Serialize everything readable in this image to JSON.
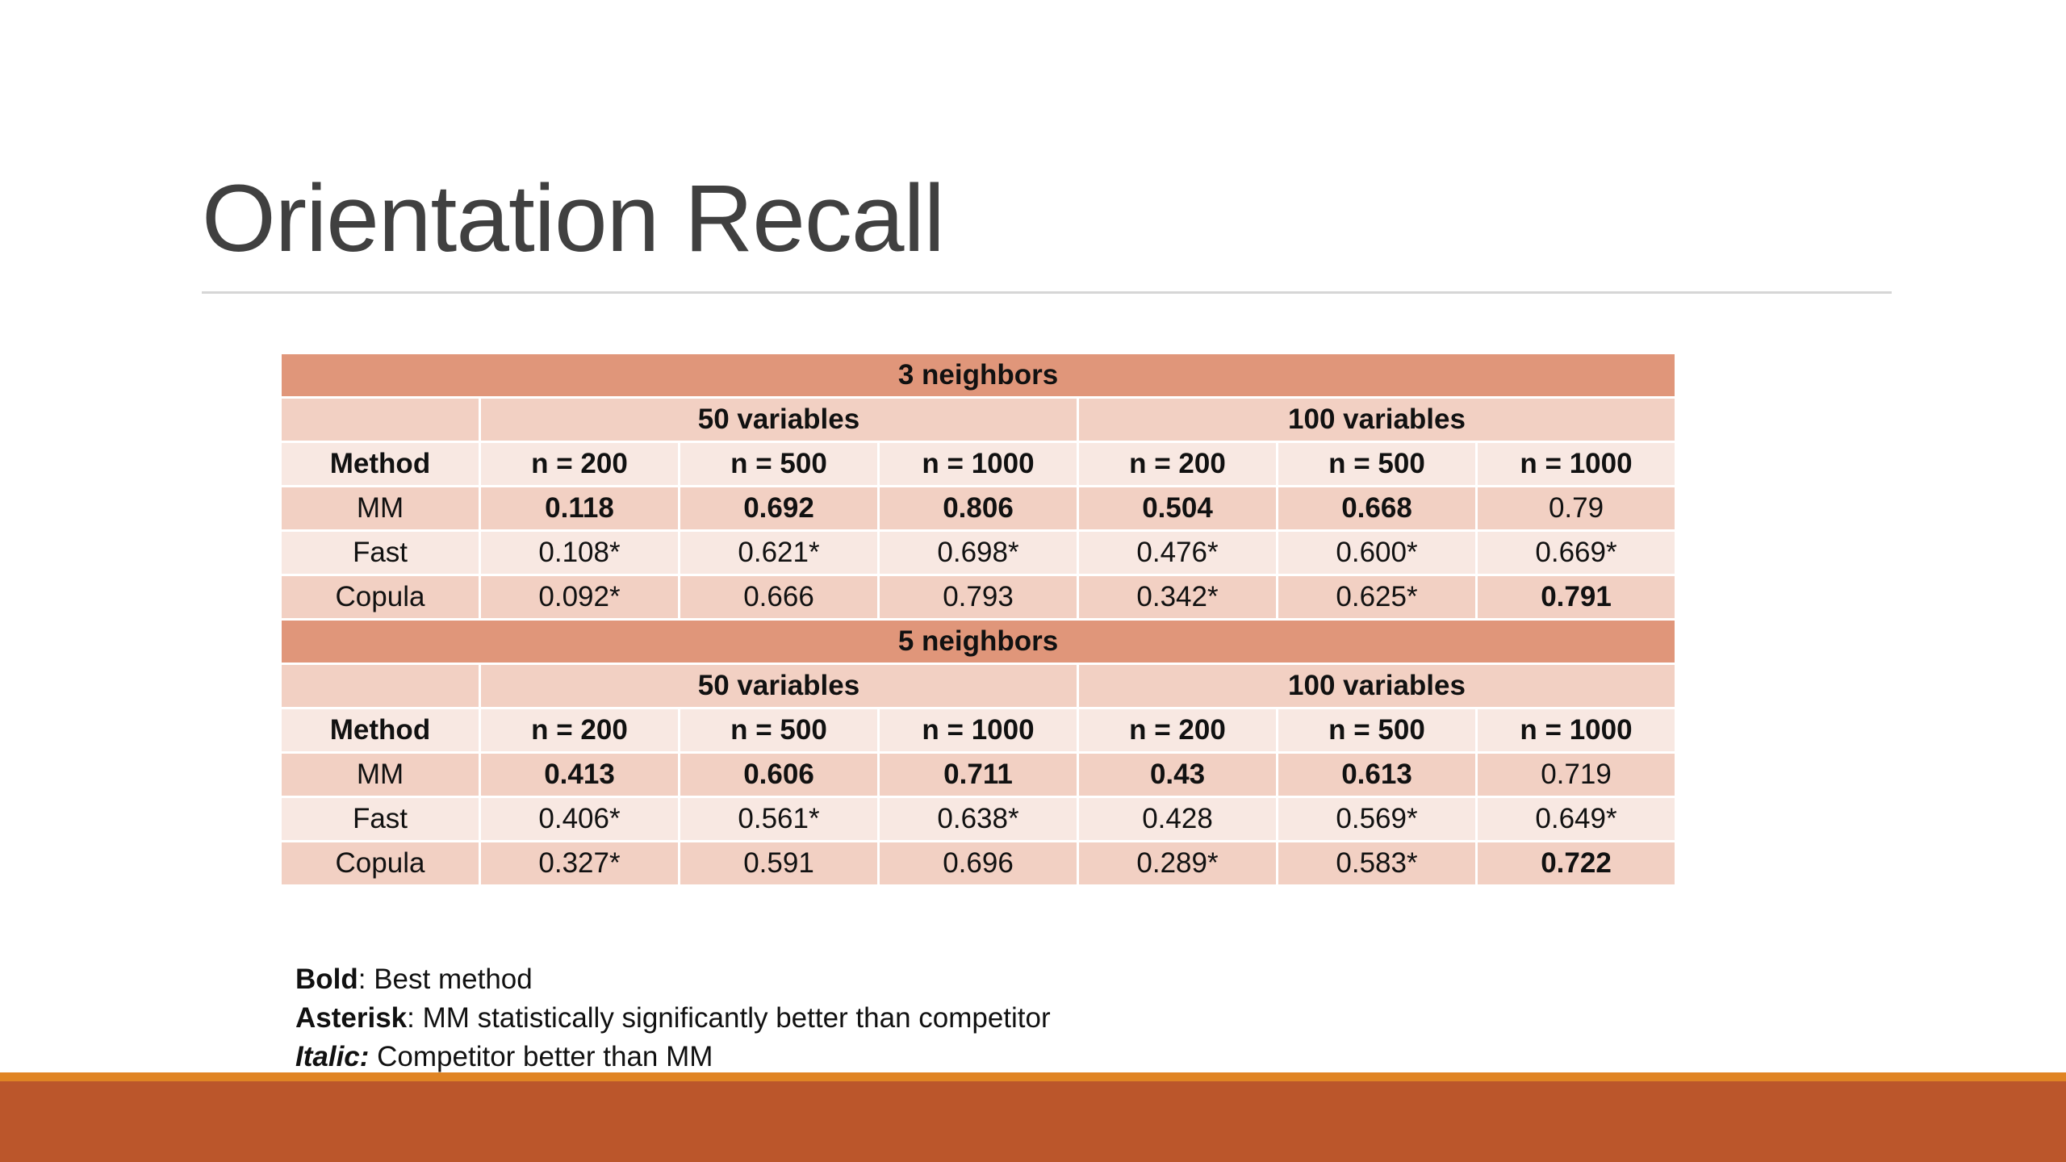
{
  "slide": {
    "title": "Orientation Recall"
  },
  "table": {
    "sections": [
      {
        "band_label": "3 neighbors",
        "group_labels": [
          "50 variables",
          "100 variables"
        ],
        "headers": [
          "Method",
          "n = 200",
          "n = 500",
          "n = 1000",
          "n = 200",
          "n = 500",
          "n = 1000"
        ],
        "rows": [
          {
            "method": "MM",
            "cells": [
              {
                "value": "0.118",
                "bold": true
              },
              {
                "value": "0.692",
                "bold": true
              },
              {
                "value": "0.806",
                "bold": true
              },
              {
                "value": "0.504",
                "bold": true
              },
              {
                "value": "0.668",
                "bold": true
              },
              {
                "value": "0.79",
                "bold": false
              }
            ]
          },
          {
            "method": "Fast",
            "cells": [
              {
                "value": "0.108*",
                "bold": false
              },
              {
                "value": "0.621*",
                "bold": false
              },
              {
                "value": "0.698*",
                "bold": false
              },
              {
                "value": "0.476*",
                "bold": false
              },
              {
                "value": "0.600*",
                "bold": false
              },
              {
                "value": "0.669*",
                "bold": false
              }
            ]
          },
          {
            "method": "Copula",
            "cells": [
              {
                "value": "0.092*",
                "bold": false
              },
              {
                "value": "0.666",
                "bold": false
              },
              {
                "value": "0.793",
                "bold": false
              },
              {
                "value": "0.342*",
                "bold": false
              },
              {
                "value": "0.625*",
                "bold": false
              },
              {
                "value": "0.791",
                "bold": true
              }
            ]
          }
        ]
      },
      {
        "band_label": "5 neighbors",
        "group_labels": [
          "50 variables",
          "100 variables"
        ],
        "headers": [
          "Method",
          "n = 200",
          "n = 500",
          "n = 1000",
          "n = 200",
          "n = 500",
          "n = 1000"
        ],
        "rows": [
          {
            "method": "MM",
            "cells": [
              {
                "value": "0.413",
                "bold": true
              },
              {
                "value": "0.606",
                "bold": true
              },
              {
                "value": "0.711",
                "bold": true
              },
              {
                "value": "0.43",
                "bold": true
              },
              {
                "value": "0.613",
                "bold": true
              },
              {
                "value": "0.719",
                "bold": false
              }
            ]
          },
          {
            "method": "Fast",
            "cells": [
              {
                "value": "0.406*",
                "bold": false
              },
              {
                "value": "0.561*",
                "bold": false
              },
              {
                "value": "0.638*",
                "bold": false
              },
              {
                "value": "0.428",
                "bold": false
              },
              {
                "value": "0.569*",
                "bold": false
              },
              {
                "value": "0.649*",
                "bold": false
              }
            ]
          },
          {
            "method": "Copula",
            "cells": [
              {
                "value": "0.327*",
                "bold": false
              },
              {
                "value": "0.591",
                "bold": false
              },
              {
                "value": "0.696",
                "bold": false
              },
              {
                "value": "0.289*",
                "bold": false
              },
              {
                "value": "0.583*",
                "bold": false
              },
              {
                "value": "0.722",
                "bold": true
              }
            ]
          }
        ]
      }
    ]
  },
  "legend": {
    "bold_key": "Bold",
    "bold_text": ": Best method",
    "asterisk_key": "Asterisk",
    "asterisk_text": ": MM statistically significantly better than competitor",
    "italic_key": "Italic:",
    "italic_text": " Competitor better than MM"
  },
  "colors": {
    "band": "#e0967a",
    "row_dark": "#f2d0c3",
    "row_light": "#f8e8e2",
    "footer_line": "#e08424",
    "footer_bar": "#bb562b",
    "title_text": "#404040"
  }
}
